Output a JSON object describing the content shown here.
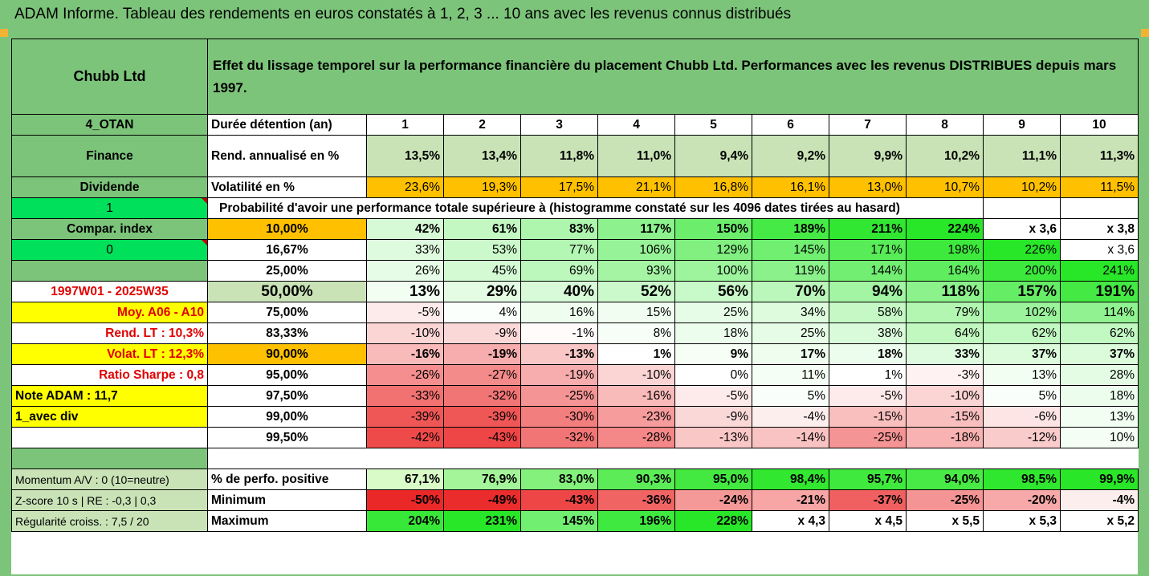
{
  "title": "ADAM Informe. Tableau des rendements en euros constatés à 1, 2, 3 ... 10 ans avec les revenus connus distribués",
  "header": {
    "name": "Chubb Ltd",
    "description": "Effet du lissage temporel sur la performance financière du placement Chubb Ltd. Performances avec les revenus DISTRIBUES depuis mars 1997."
  },
  "left": {
    "code": "4_OTAN",
    "sector": "Finance",
    "dividend": "Dividende",
    "one": "1",
    "compar": "Compar. index",
    "zero": "0",
    "period": "1997W01 - 2025W35",
    "moy": "Moy. A06 - A10",
    "rend_lt": "Rend. LT :   10,3%",
    "volat_lt": "Volat. LT :   12,3%",
    "sharpe": "Ratio Sharpe :   0,8",
    "note": "Note ADAM : 11,7",
    "avec_div": "1_avec div",
    "momentum": "Momentum A/V : 0 (10=neutre)",
    "zscore": "Z-score 10 s  |  RE : -0,3  |  0,3",
    "regularite": "Régularité croiss. : 7,5 / 20"
  },
  "labels": {
    "duree": "Durée détention (an)",
    "rend": "Rend. annualisé en %",
    "vol": "Volatilité en %",
    "proba": "Probabilité d'avoir une performance totale supérieure à (histogramme constaté sur les 4096 dates tirées au hasard)",
    "positive": "% de perfo. positive",
    "minimum": "Minimum",
    "maximum": "Maximum"
  },
  "years": [
    "1",
    "2",
    "3",
    "4",
    "5",
    "6",
    "7",
    "8",
    "9",
    "10"
  ],
  "rend": [
    "13,5%",
    "13,4%",
    "11,8%",
    "11,0%",
    "9,4%",
    "9,2%",
    "9,9%",
    "10,2%",
    "11,1%",
    "11,3%"
  ],
  "vol": [
    "23,6%",
    "19,3%",
    "17,5%",
    "21,1%",
    "16,8%",
    "16,1%",
    "13,0%",
    "10,7%",
    "10,2%",
    "11,5%"
  ],
  "prob_rows": [
    {
      "pct": "10,00%",
      "values": [
        "42%",
        "61%",
        "83%",
        "117%",
        "150%",
        "189%",
        "211%",
        "224%",
        "x 3,6",
        "x 3,8"
      ]
    },
    {
      "pct": "16,67%",
      "values": [
        "33%",
        "53%",
        "77%",
        "106%",
        "129%",
        "145%",
        "171%",
        "198%",
        "226%",
        "x 3,6"
      ]
    },
    {
      "pct": "25,00%",
      "values": [
        "26%",
        "45%",
        "69%",
        "93%",
        "100%",
        "119%",
        "144%",
        "164%",
        "200%",
        "241%"
      ]
    },
    {
      "pct": "50,00%",
      "values": [
        "13%",
        "29%",
        "40%",
        "52%",
        "56%",
        "70%",
        "94%",
        "118%",
        "157%",
        "191%"
      ]
    },
    {
      "pct": "75,00%",
      "values": [
        "-5%",
        "4%",
        "16%",
        "15%",
        "25%",
        "34%",
        "58%",
        "79%",
        "102%",
        "114%"
      ]
    },
    {
      "pct": "83,33%",
      "values": [
        "-10%",
        "-9%",
        "-1%",
        "8%",
        "18%",
        "25%",
        "38%",
        "64%",
        "62%",
        "62%"
      ]
    },
    {
      "pct": "90,00%",
      "values": [
        "-16%",
        "-19%",
        "-13%",
        "1%",
        "9%",
        "17%",
        "18%",
        "33%",
        "37%",
        "37%"
      ]
    },
    {
      "pct": "95,00%",
      "values": [
        "-26%",
        "-27%",
        "-19%",
        "-10%",
        "0%",
        "11%",
        "1%",
        "-3%",
        "13%",
        "28%"
      ]
    },
    {
      "pct": "97,50%",
      "values": [
        "-33%",
        "-32%",
        "-25%",
        "-16%",
        "-5%",
        "5%",
        "-5%",
        "-10%",
        "5%",
        "18%"
      ]
    },
    {
      "pct": "99,00%",
      "values": [
        "-39%",
        "-39%",
        "-30%",
        "-23%",
        "-9%",
        "-4%",
        "-15%",
        "-15%",
        "-6%",
        "13%"
      ]
    },
    {
      "pct": "99,50%",
      "values": [
        "-42%",
        "-43%",
        "-32%",
        "-28%",
        "-13%",
        "-14%",
        "-25%",
        "-18%",
        "-12%",
        "10%"
      ]
    }
  ],
  "positive": [
    "67,1%",
    "76,9%",
    "83,0%",
    "90,3%",
    "95,0%",
    "98,4%",
    "95,7%",
    "94,0%",
    "98,5%",
    "99,9%"
  ],
  "minimum": [
    "-50%",
    "-49%",
    "-43%",
    "-36%",
    "-24%",
    "-21%",
    "-37%",
    "-25%",
    "-20%",
    "-4%"
  ],
  "maximum": [
    "204%",
    "231%",
    "145%",
    "196%",
    "228%",
    "x 4,3",
    "x 4,5",
    "x 5,5",
    "x 5,3",
    "x 5,2"
  ],
  "colors": {
    "header_green": "#7cc47a",
    "light_green": "#c9e3b7",
    "orange": "#ffc000",
    "bright_green": "#00e05a",
    "yellow": "#ffff00",
    "red_text": "#e00000"
  }
}
